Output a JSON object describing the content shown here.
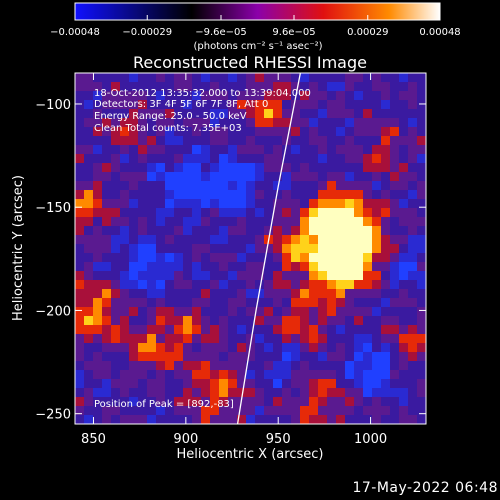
{
  "chart_data": {
    "type": "heatmap",
    "title": "Reconstructed RHESSI Image",
    "xlabel": "Heliocentric X (arcsec)",
    "ylabel": "Heliocentric Y (arcsec)",
    "xlim": [
      840,
      1030
    ],
    "ylim": [
      -255,
      -85
    ],
    "x_ticks": [
      850,
      900,
      950,
      1000
    ],
    "x_tick_labels": [
      "850",
      "900",
      "950",
      "1000"
    ],
    "y_ticks": [
      -100,
      -150,
      -200,
      -250
    ],
    "y_tick_labels": [
      "−100",
      "−150",
      "−200",
      "−250"
    ],
    "colorbar": {
      "range": [
        -0.00048,
        0.00048
      ],
      "ticks": [
        -0.00048,
        -0.00029,
        -9.6e-05,
        9.6e-05,
        0.00029,
        0.00048
      ],
      "tick_labels": [
        "−0.00048",
        "−0.00029",
        "−9.6e−05",
        "9.6e−05",
        "0.00029",
        "0.00048"
      ],
      "units": "(photons cm⁻² s⁻¹ asec⁻²)",
      "colors": [
        "#1010ff",
        "#000000",
        "#8b00aa",
        "#e01010",
        "#ff8a00",
        "#ffffff"
      ]
    },
    "annotations": [
      "18-Oct-2012 13:35:32.000 to 13:39:04.000",
      "Detectors: 3F 4F 5F 6F 7F 8F, Att 0",
      "Energy Range: 25.0 - 50.0 keV",
      "Clean    Total counts: 7.35E+03"
    ],
    "peak_label": "Position of Peak = [892,-83]",
    "limb": {
      "description_free": true,
      "points": [
        [
          928,
          -255
        ],
        [
          938,
          -200
        ],
        [
          950,
          -140
        ],
        [
          962,
          -85
        ]
      ]
    },
    "grid": false
  },
  "footer": {
    "timestamp": "17-May-2022 06:48"
  }
}
